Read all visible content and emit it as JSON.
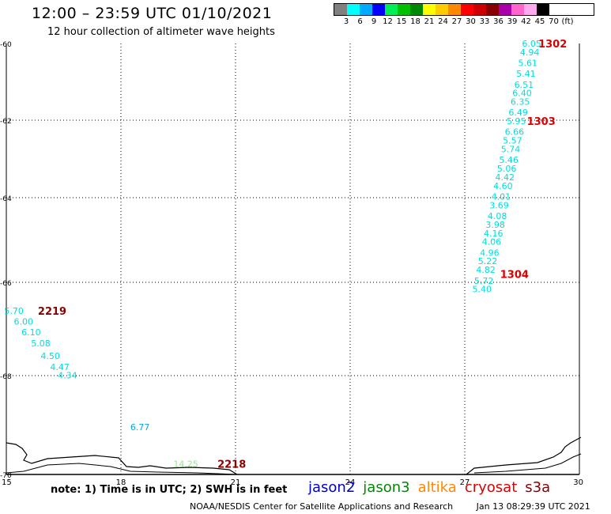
{
  "header": {
    "title": "12:00 – 23:59 UTC 01/10/2021",
    "subtitle": "12 hour collection of altimeter wave heights"
  },
  "colorbar": {
    "unit": "(ft)",
    "ticks": [
      "3",
      "6",
      "9",
      "12",
      "15",
      "18",
      "21",
      "24",
      "27",
      "30",
      "33",
      "36",
      "39",
      "42",
      "45",
      "70"
    ],
    "colors": [
      "#808080",
      "#00ffff",
      "#00aaff",
      "#0000ff",
      "#00ee55",
      "#00c000",
      "#008800",
      "#ffff00",
      "#ffcc00",
      "#ff8800",
      "#ff0000",
      "#cc0000",
      "#880000",
      "#aa00aa",
      "#ff66cc",
      "#ffaaee",
      "#000000"
    ]
  },
  "map": {
    "x_axis": {
      "ticks": [
        "15",
        "18",
        "21",
        "24",
        "27",
        "30"
      ],
      "min": 15,
      "max": 30
    },
    "y_axis": {
      "ticks": [
        "-60",
        "-62",
        "-64",
        "-66",
        "-68",
        "-70"
      ],
      "min": -70,
      "max": -60
    },
    "tracks": [
      {
        "id": "1302-1304",
        "color": "#00dddd",
        "points": [
          {
            "lon": 28.75,
            "lat": -60.0,
            "v": "6.05"
          },
          {
            "lon": 28.7,
            "lat": -60.2,
            "v": "4.94"
          },
          {
            "lon": 28.65,
            "lat": -60.45,
            "v": "5.61"
          },
          {
            "lon": 28.6,
            "lat": -60.7,
            "v": "5.41"
          },
          {
            "lon": 28.55,
            "lat": -60.95,
            "v": "6.51"
          },
          {
            "lon": 28.5,
            "lat": -61.15,
            "v": "6.40"
          },
          {
            "lon": 28.45,
            "lat": -61.35,
            "v": "6.35"
          },
          {
            "lon": 28.4,
            "lat": -61.6,
            "v": "6.49"
          },
          {
            "lon": 28.35,
            "lat": -61.8,
            "v": "5.95"
          },
          {
            "lon": 28.3,
            "lat": -62.05,
            "v": "6.66"
          },
          {
            "lon": 28.25,
            "lat": -62.25,
            "v": "5.57"
          },
          {
            "lon": 28.2,
            "lat": -62.45,
            "v": "5.74"
          },
          {
            "lon": 28.15,
            "lat": -62.7,
            "v": "5.46"
          },
          {
            "lon": 28.1,
            "lat": -62.9,
            "v": "5.06"
          },
          {
            "lon": 28.05,
            "lat": -63.1,
            "v": "4.42"
          },
          {
            "lon": 28.0,
            "lat": -63.3,
            "v": "4.60"
          },
          {
            "lon": 27.95,
            "lat": -63.55,
            "v": "4.01"
          },
          {
            "lon": 27.9,
            "lat": -63.75,
            "v": "3.69"
          },
          {
            "lon": 27.85,
            "lat": -64.0,
            "v": "4.08"
          },
          {
            "lon": 27.8,
            "lat": -64.2,
            "v": "3.98"
          },
          {
            "lon": 27.75,
            "lat": -64.4,
            "v": "4.16"
          },
          {
            "lon": 27.7,
            "lat": -64.6,
            "v": "4.06"
          },
          {
            "lon": 27.65,
            "lat": -64.85,
            "v": "4.96"
          },
          {
            "lon": 27.6,
            "lat": -65.05,
            "v": "5.22"
          },
          {
            "lon": 27.55,
            "lat": -65.25,
            "v": "4.82"
          },
          {
            "lon": 27.5,
            "lat": -65.5,
            "v": "5.72"
          },
          {
            "lon": 27.45,
            "lat": -65.7,
            "v": "5.40"
          }
        ]
      },
      {
        "id": "2219",
        "color": "#00dddd",
        "points": [
          {
            "lon": 15.2,
            "lat": -66.2,
            "v": "5.70"
          },
          {
            "lon": 15.45,
            "lat": -66.45,
            "v": "6.00"
          },
          {
            "lon": 15.65,
            "lat": -66.7,
            "v": "6.10"
          },
          {
            "lon": 15.9,
            "lat": -66.95,
            "v": "5.08"
          },
          {
            "lon": 16.15,
            "lat": -67.25,
            "v": "4.50"
          },
          {
            "lon": 16.4,
            "lat": -67.5,
            "v": "4.47"
          },
          {
            "lon": 16.6,
            "lat": -67.7,
            "v": "4.34"
          }
        ]
      },
      {
        "id": "extra",
        "color": "#00aadd",
        "points": [
          {
            "lon": 18.5,
            "lat": -68.9,
            "v": "6.77"
          }
        ]
      },
      {
        "id": "2218",
        "color": "#88ee88",
        "points": [
          {
            "lon": 19.7,
            "lat": -69.75,
            "v": "14.25"
          }
        ]
      }
    ],
    "pass_labels": [
      {
        "text": "1302",
        "lon": 29.3,
        "lat": -60.0,
        "color": "#dd0000"
      },
      {
        "text": "1303",
        "lon": 29.0,
        "lat": -61.8,
        "color": "#dd0000"
      },
      {
        "text": "1304",
        "lon": 28.3,
        "lat": -65.35,
        "color": "#dd0000"
      },
      {
        "text": "2219",
        "lon": 16.2,
        "lat": -66.2,
        "color": "#880000"
      },
      {
        "text": "2218",
        "lon": 20.9,
        "lat": -69.75,
        "color": "#880000"
      }
    ]
  },
  "footer": {
    "note": "note: 1) Time is in UTC; 2) SWH is in feet",
    "legend": [
      {
        "label": "jason2",
        "color": "#0000cc"
      },
      {
        "label": "jason3",
        "color": "#008800"
      },
      {
        "label": "altika",
        "color": "#ff8800"
      },
      {
        "label": "cryosat",
        "color": "#dd0000"
      },
      {
        "label": "s3a",
        "color": "#880000"
      }
    ],
    "credit": "NOAA/NESDIS Center for Satellite Applications and Research",
    "timestamp": "Jan 13 08:29:39 UTC 2021"
  }
}
